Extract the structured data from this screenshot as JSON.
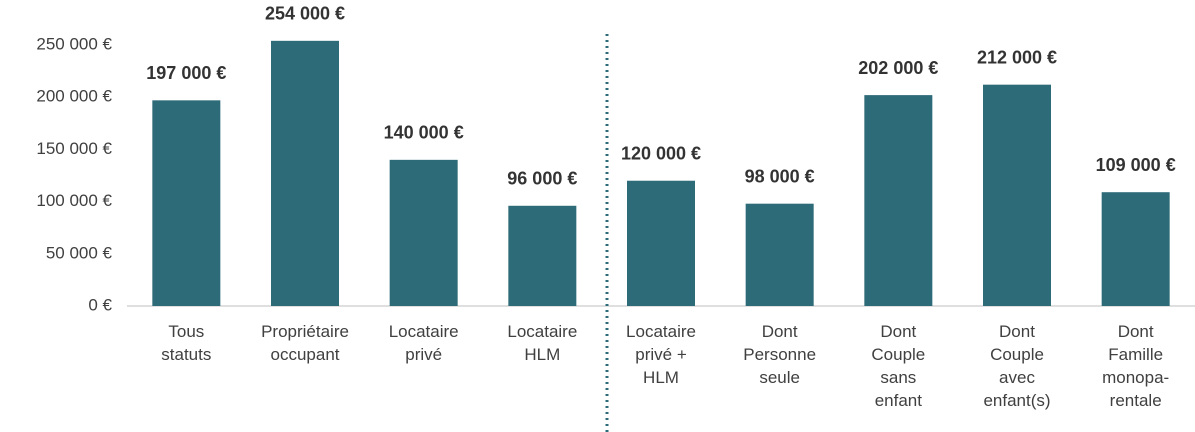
{
  "chart_data": {
    "type": "bar",
    "categories": [
      "Tous\nstatuts",
      "Propriétaire\noccupant",
      "Locataire\nprivé",
      "Locataire\nHLM",
      "Locataire\nprivé +\nHLM",
      "Dont\nPersonne\nseule",
      "Dont\nCouple\nsans\nenfant",
      "Dont\nCouple\navec\nenfant(s)",
      "Dont\nFamille\nmonopa-\nrentale"
    ],
    "values": [
      197000,
      254000,
      140000,
      96000,
      120000,
      98000,
      202000,
      212000,
      109000
    ],
    "value_labels": [
      "197 000 €",
      "254 000 €",
      "140 000 €",
      "96 000 €",
      "120 000 €",
      "98 000 €",
      "202 000 €",
      "212 000 €",
      "109 000 €"
    ],
    "color": "#2e6b78",
    "ylim": [
      0,
      250000
    ],
    "yticks": [
      {
        "value": 0,
        "label": "0 €"
      },
      {
        "value": 50000,
        "label": "50 000 €"
      },
      {
        "value": 100000,
        "label": "100 000 €"
      },
      {
        "value": 150000,
        "label": "150 000 €"
      },
      {
        "value": 200000,
        "label": "200 000 €"
      },
      {
        "value": 250000,
        "label": "250 000 €"
      }
    ],
    "grid": false
  }
}
